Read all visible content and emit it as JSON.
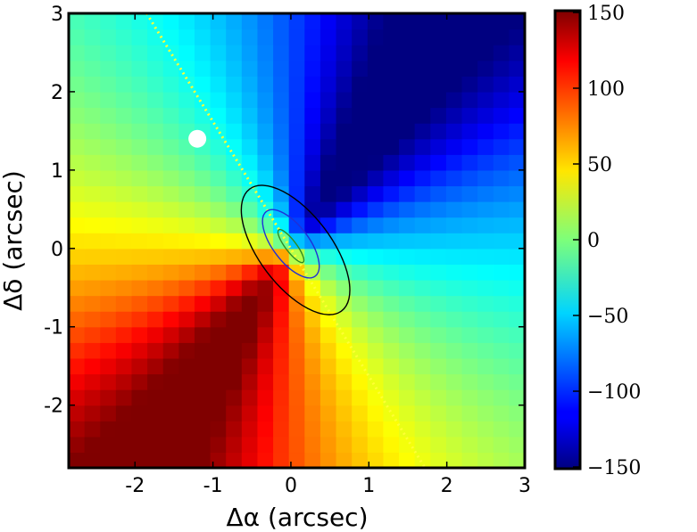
{
  "chart_data": {
    "type": "heatmap",
    "title": "",
    "xlabel": "Δα  (arcsec)",
    "ylabel": "Δδ  (arcsec)",
    "xlim": [
      -2.85,
      3.0
    ],
    "ylim": [
      -2.8,
      3.0
    ],
    "xticks": [
      -2,
      -1,
      0,
      1,
      2,
      3
    ],
    "yticks": [
      -2,
      -1,
      0,
      1,
      2,
      3
    ],
    "xtick_labels": [
      "-2",
      "-1",
      "0",
      "1",
      "2",
      "3"
    ],
    "ytick_labels": [
      "-2",
      "-1",
      "0",
      "1",
      "2",
      "3"
    ],
    "grid": false,
    "colormap": "jet",
    "grid_cells": 29,
    "field_model": {
      "description": "rotating velocity field, kinematic major axis along the dotted line",
      "major_axis_pa_deg": 214,
      "vmax": 165,
      "core_radius": 0.35,
      "inclination_ratio": 0.45
    },
    "colorbar": {
      "vmin": -150,
      "vmax": 150,
      "ticks": [
        150,
        100,
        50,
        0,
        -50,
        -100,
        -150
      ],
      "tick_labels": [
        "150",
        "100",
        "50",
        "0",
        "−50",
        "−100",
        "−150"
      ]
    },
    "major_axis_line": {
      "style": "dotted",
      "color": "#ffff33",
      "x": [
        -1.85,
        1.72
      ],
      "y": [
        3.0,
        -2.8
      ]
    },
    "contours": [
      {
        "name": "outer",
        "color": "#000000",
        "cx": 0.06,
        "cy": -0.02,
        "semi_major": 0.98,
        "semi_minor": 0.46,
        "angle_deg": 37
      },
      {
        "name": "middle",
        "color": "#1f2fd8",
        "cx": 0.0,
        "cy": 0.06,
        "semi_major": 0.52,
        "semi_minor": 0.23,
        "angle_deg": 37
      },
      {
        "name": "inner",
        "color": "#2e8b22",
        "cx": 0.0,
        "cy": 0.03,
        "semi_major": 0.26,
        "semi_minor": 0.07,
        "angle_deg": 37
      }
    ],
    "marker": {
      "shape": "circle",
      "color": "#ffffff",
      "x": -1.2,
      "y": 1.4
    }
  }
}
